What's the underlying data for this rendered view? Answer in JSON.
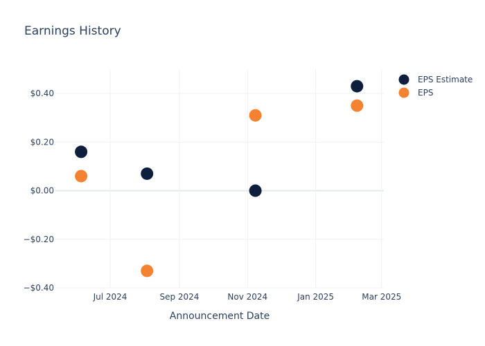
{
  "chart_data": {
    "type": "scatter",
    "title": "Earnings History",
    "xlabel": "Announcement Date",
    "ylabel": "",
    "x_ticks": [
      "2024-07-01",
      "2024-09-01",
      "2024-11-01",
      "2025-01-01",
      "2025-03-01"
    ],
    "x_tick_labels": [
      "Jul 2024",
      "Sep 2024",
      "Nov 2024",
      "Jan 2025",
      "Mar 2025"
    ],
    "xlim": [
      "2024-05-13",
      "2025-03-03"
    ],
    "y_ticks": [
      0.4,
      0.2,
      0.0,
      -0.2,
      -0.4
    ],
    "y_tick_labels": [
      "$0.40",
      "$0.20",
      "$0.00",
      "−$0.20",
      "−$0.40"
    ],
    "ylim": [
      -0.4,
      0.5
    ],
    "grid": true,
    "legend_position": "top-right",
    "series": [
      {
        "name": "EPS Estimate",
        "color": "#0d1f3c",
        "points": [
          {
            "x": "2024-06-05",
            "y": 0.16
          },
          {
            "x": "2024-08-03",
            "y": 0.07
          },
          {
            "x": "2024-11-08",
            "y": 0.0
          },
          {
            "x": "2025-02-07",
            "y": 0.43
          }
        ]
      },
      {
        "name": "EPS",
        "color": "#f58231",
        "points": [
          {
            "x": "2024-06-05",
            "y": 0.06
          },
          {
            "x": "2024-08-03",
            "y": -0.33
          },
          {
            "x": "2024-11-08",
            "y": 0.31
          },
          {
            "x": "2025-02-07",
            "y": 0.35
          }
        ]
      }
    ]
  }
}
